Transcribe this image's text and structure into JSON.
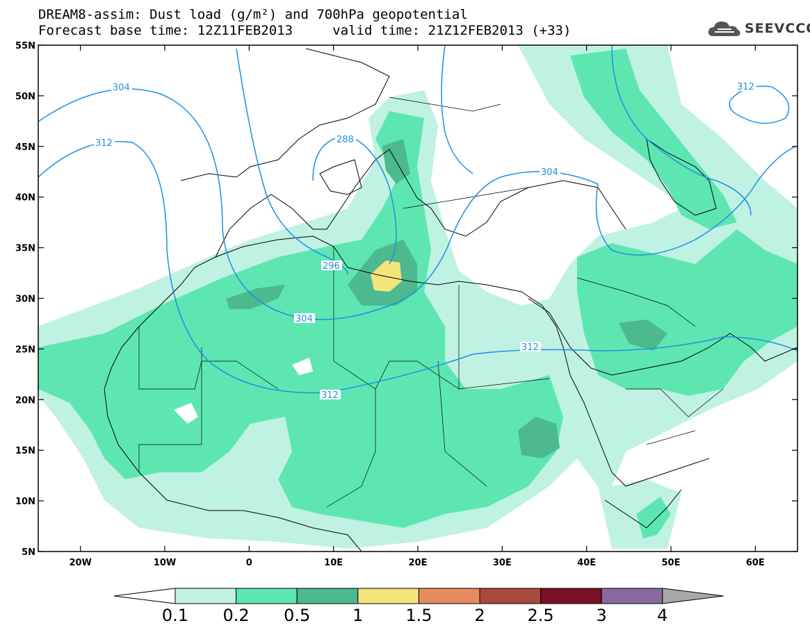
{
  "header": {
    "line1": "DREAM8-assim: Dust load (g/m²) and 700hPa geopotential",
    "line2": "Forecast base time: 12Z11FEB2013     valid time: 21Z12FEB2013 (+33)"
  },
  "logo": {
    "text": "SEEVCCC",
    "icon": "cloud-icon"
  },
  "map": {
    "lon_range": [
      -25,
      65
    ],
    "lat_range": [
      5,
      55
    ],
    "lat_ticks": [
      "5N",
      "10N",
      "15N",
      "20N",
      "25N",
      "30N",
      "35N",
      "40N",
      "45N",
      "50N",
      "55N"
    ],
    "lon_ticks": [
      "20W",
      "10W",
      "0",
      "10E",
      "20E",
      "30E",
      "40E",
      "50E",
      "60E"
    ],
    "contour_color": "#1f8fe0",
    "contour_labels": [
      "304",
      "312",
      "288",
      "296",
      "304",
      "312",
      "304",
      "312",
      "312"
    ]
  },
  "colorbar": {
    "labels": [
      "0.1",
      "0.2",
      "0.5",
      "1",
      "1.5",
      "2",
      "2.5",
      "3",
      "4"
    ],
    "colors": [
      "#bff2e2",
      "#5ee6b2",
      "#4cb98e",
      "#f4e57a",
      "#e88a5f",
      "#a84a3a",
      "#7a0f28",
      "#8a6a9e",
      "#a8a8a8"
    ]
  }
}
